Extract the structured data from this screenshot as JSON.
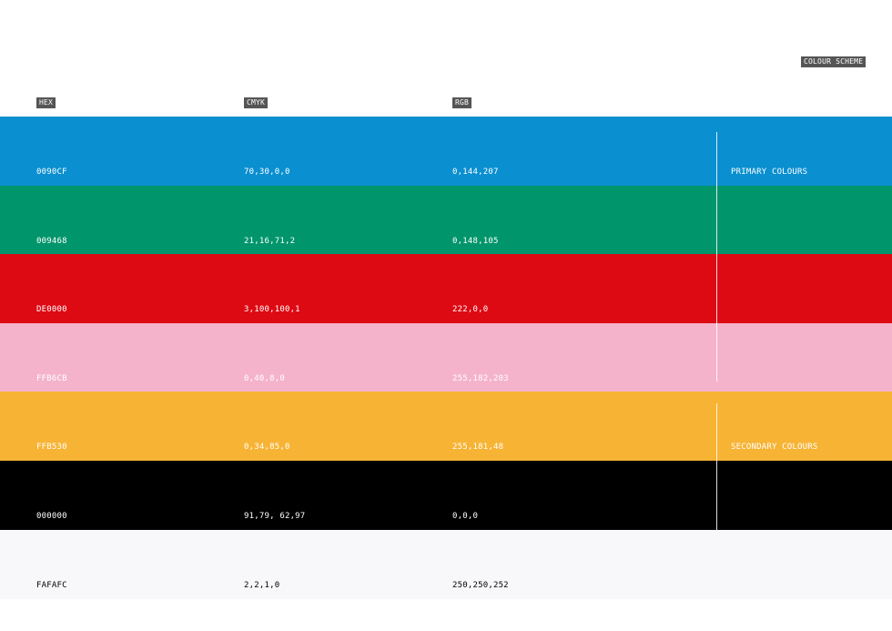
{
  "header": {
    "scheme_label": "COLOUR SCHEME",
    "columns": [
      "HEX",
      "CMYK",
      "RGB"
    ]
  },
  "rows": [
    {
      "hex": "0090CF",
      "cmyk": "70,30,0,0",
      "rgb": "0,144,207",
      "color": "#0a8fd0",
      "text_color": "#ffffff"
    },
    {
      "hex": "009468",
      "cmyk": "21,16,71,2",
      "rgb": "0,148,105",
      "color": "#00956a",
      "text_color": "#ffffff"
    },
    {
      "hex": "DE0000",
      "cmyk": "3,100,100,1",
      "rgb": "222,0,0",
      "color": "#dd0a14",
      "text_color": "#ffffff"
    },
    {
      "hex": "FFB6CB",
      "cmyk": "0,40,8,0",
      "rgb": "255,182,203",
      "color": "#f5b3cb",
      "text_color": "#ffffff"
    },
    {
      "hex": "FFB530",
      "cmyk": "0,34,85,0",
      "rgb": "255,181,48",
      "color": "#f7b334",
      "text_color": "#ffffff"
    },
    {
      "hex": "000000",
      "cmyk": "91,79, 62,97",
      "rgb": "0,0,0",
      "color": "#000000",
      "text_color": "#ffffff"
    },
    {
      "hex": "FAFAFC",
      "cmyk": "2,2,1,0",
      "rgb": "250,250,252",
      "color": "#f8f8fa",
      "text_color": "#000000"
    }
  ],
  "groups": [
    {
      "label": "PRIMARY COLOURS",
      "first_row": 0,
      "last_row": 3
    },
    {
      "label": "SECONDARY COLOURS",
      "first_row": 4,
      "last_row": 5
    }
  ]
}
